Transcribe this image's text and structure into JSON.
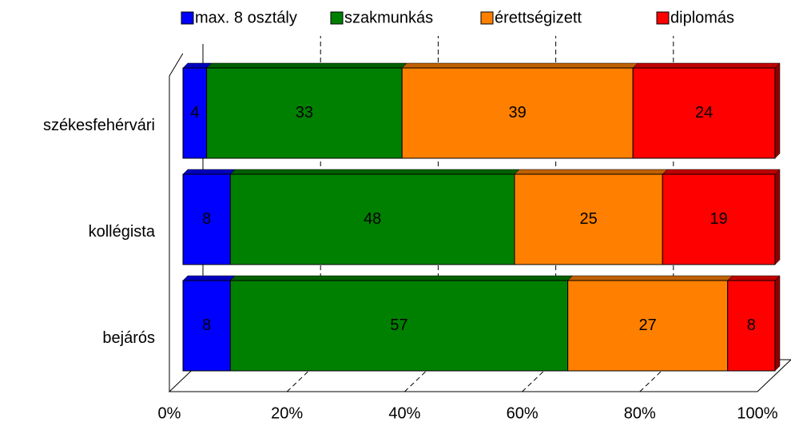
{
  "chart_data": {
    "type": "bar",
    "orientation": "horizontal",
    "stacked": true,
    "categories": [
      "székesfehérvári",
      "kollégista",
      "bejárós"
    ],
    "series": [
      {
        "name": "max. 8 osztály",
        "color": "#0000ff",
        "values": [
          4,
          8,
          8
        ]
      },
      {
        "name": "szakmunkás",
        "color": "#008000",
        "values": [
          33,
          48,
          57
        ]
      },
      {
        "name": "érettségizett",
        "color": "#ff8000",
        "values": [
          39,
          25,
          27
        ]
      },
      {
        "name": "diplomás",
        "color": "#ff0000",
        "values": [
          24,
          19,
          8
        ]
      }
    ],
    "xlim": [
      0,
      100
    ],
    "xticks": [
      {
        "value": 0,
        "label": "0%"
      },
      {
        "value": 20,
        "label": "20%"
      },
      {
        "value": 40,
        "label": "40%"
      },
      {
        "value": 60,
        "label": "60%"
      },
      {
        "value": 80,
        "label": "80%"
      },
      {
        "value": 100,
        "label": "100%"
      }
    ],
    "grid": true,
    "legend": "top"
  }
}
